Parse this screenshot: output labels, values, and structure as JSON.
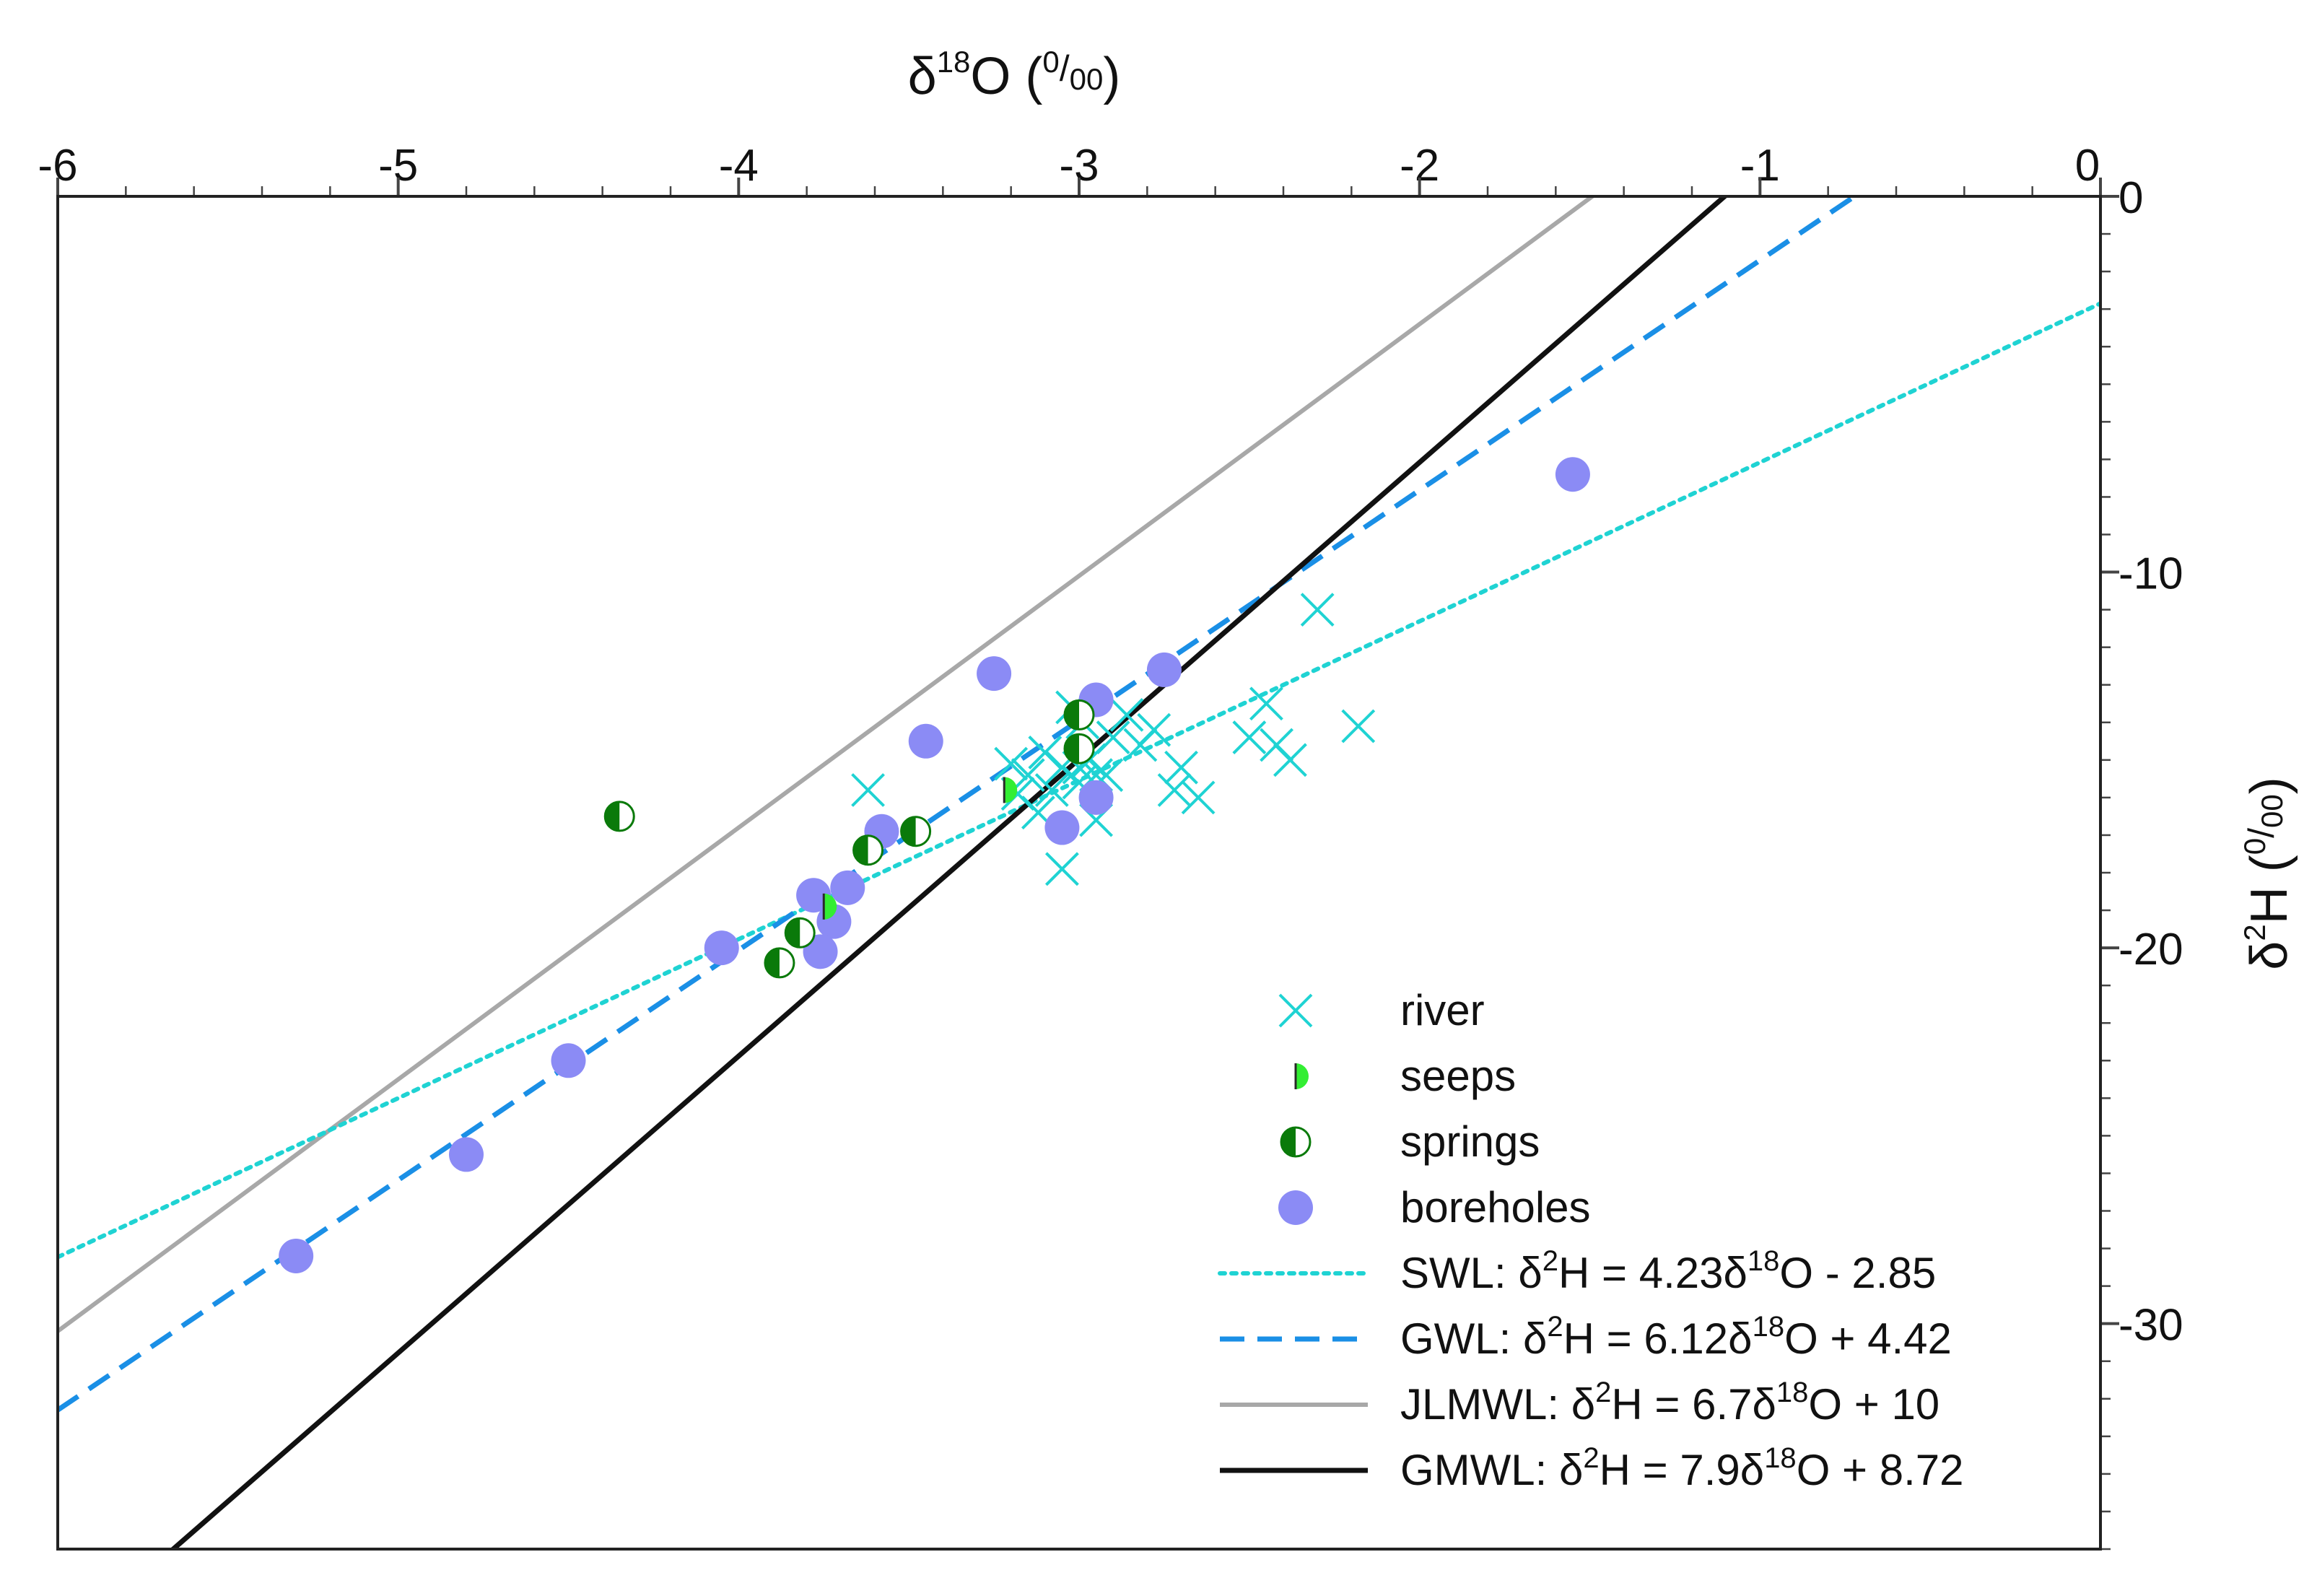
{
  "chart_data": {
    "type": "scatter",
    "title": "",
    "xlabel": {
      "base": "δ",
      "sup": "18",
      "main": "O (",
      "frac_num": "0",
      "slash": "/",
      "frac_den": "00",
      "close": ")"
    },
    "ylabel": {
      "base": "δ",
      "sup": "2",
      "main": "H (",
      "frac_num": "0",
      "slash": "/",
      "frac_den": "00",
      "close": ")"
    },
    "xlim": [
      -6,
      0
    ],
    "ylim": [
      -36,
      0
    ],
    "x_axis_position": "top",
    "y_axis_position": "right",
    "xticks": [
      -6,
      -5,
      -4,
      -3,
      -2,
      -1,
      0
    ],
    "xtick_labels": [
      "-6",
      "-5",
      "-4",
      "-3",
      "-2",
      "-1",
      "0"
    ],
    "yticks": [
      0,
      -10,
      -20,
      -30
    ],
    "ytick_labels": [
      "0",
      "-10",
      "-20",
      "-30"
    ],
    "grid": false,
    "legend_position": "bottom-right",
    "colors": {
      "river": "#1fd3d3",
      "seeps": "#33ee33",
      "springs": "#0a7a0a",
      "boreholes": "#8b8bf5",
      "swl": "#1fd3d3",
      "gwl": "#1a8fe6",
      "jlmwl": "#a8a8a8",
      "gmwl": "#111111"
    },
    "series": [
      {
        "name": "river",
        "marker": "x",
        "points": [
          [
            -2.3,
            -11.0
          ],
          [
            -2.18,
            -14.1
          ],
          [
            -2.45,
            -13.5
          ],
          [
            -2.42,
            -14.6
          ],
          [
            -2.38,
            -15.0
          ],
          [
            -2.5,
            -14.4
          ],
          [
            -2.65,
            -16.0
          ],
          [
            -2.7,
            -15.2
          ],
          [
            -2.72,
            -15.8
          ],
          [
            -2.78,
            -14.2
          ],
          [
            -2.82,
            -14.6
          ],
          [
            -2.86,
            -13.8
          ],
          [
            -2.9,
            -14.4
          ],
          [
            -2.92,
            -15.4
          ],
          [
            -2.95,
            -16.6
          ],
          [
            -2.97,
            -15.0
          ],
          [
            -2.99,
            -14.0
          ],
          [
            -3.0,
            -15.6
          ],
          [
            -3.02,
            -13.6
          ],
          [
            -3.05,
            -15.2
          ],
          [
            -3.08,
            -15.8
          ],
          [
            -3.1,
            -14.8
          ],
          [
            -3.12,
            -16.4
          ],
          [
            -3.15,
            -15.4
          ],
          [
            -3.18,
            -15.9
          ],
          [
            -3.2,
            -15.1
          ],
          [
            -3.05,
            -17.9
          ],
          [
            -3.62,
            -15.8
          ],
          [
            -2.95,
            -15.4
          ],
          [
            -3.0,
            -15.2
          ]
        ]
      },
      {
        "name": "seeps",
        "marker": "half-right",
        "points": [
          [
            -3.22,
            -15.8
          ],
          [
            -3.75,
            -18.9
          ]
        ]
      },
      {
        "name": "springs",
        "marker": "half-left",
        "points": [
          [
            -4.35,
            -16.5
          ],
          [
            -3.62,
            -17.4
          ],
          [
            -3.48,
            -16.9
          ],
          [
            -3.82,
            -19.6
          ],
          [
            -3.88,
            -20.4
          ],
          [
            -3.0,
            -13.8
          ],
          [
            -3.0,
            -14.7
          ]
        ]
      },
      {
        "name": "boreholes",
        "marker": "circle",
        "points": [
          [
            -1.55,
            -7.4
          ],
          [
            -2.75,
            -12.6
          ],
          [
            -2.95,
            -13.4
          ],
          [
            -3.25,
            -12.7
          ],
          [
            -3.45,
            -14.5
          ],
          [
            -3.05,
            -16.8
          ],
          [
            -2.95,
            -16.0
          ],
          [
            -3.58,
            -16.9
          ],
          [
            -3.68,
            -18.4
          ],
          [
            -3.78,
            -18.6
          ],
          [
            -3.72,
            -19.3
          ],
          [
            -3.76,
            -20.1
          ],
          [
            -4.05,
            -20.0
          ],
          [
            -4.5,
            -23.0
          ],
          [
            -4.8,
            -25.5
          ],
          [
            -5.3,
            -28.2
          ]
        ]
      }
    ],
    "lines": [
      {
        "name": "SWL",
        "style": "dotted",
        "slope": 4.23,
        "intercept": -2.85,
        "label": {
          "name": "SWL: ",
          "d": "δ",
          "s1": "2",
          "a": "H = 4.23",
          "d2": "δ",
          "s2": "18",
          "b": "O - 2.85"
        }
      },
      {
        "name": "GWL",
        "style": "dashed",
        "slope": 6.12,
        "intercept": 4.42,
        "label": {
          "name": "GWL: ",
          "d": "δ",
          "s1": "2",
          "a": "H = 6.12",
          "d2": "δ",
          "s2": "18",
          "b": "O + 4.42"
        }
      },
      {
        "name": "JLMWL",
        "style": "solid-gray",
        "slope": 6.7,
        "intercept": 10,
        "label": {
          "name": "JLMWL: ",
          "d": "δ",
          "s1": "2",
          "a": "H = 6.7",
          "d2": "δ",
          "s2": "18",
          "b": "O + 10"
        }
      },
      {
        "name": "GMWL",
        "style": "solid-black",
        "slope": 7.9,
        "intercept": 8.72,
        "label": {
          "name": "GMWL: ",
          "d": "δ",
          "s1": "2",
          "a": "H = 7.9",
          "d2": "δ",
          "s2": "18",
          "b": "O + 8.72"
        }
      }
    ],
    "legend": [
      {
        "key": "river",
        "text": "river"
      },
      {
        "key": "seeps",
        "text": "seeps"
      },
      {
        "key": "springs",
        "text": "springs"
      },
      {
        "key": "boreholes",
        "text": "boreholes"
      }
    ]
  }
}
